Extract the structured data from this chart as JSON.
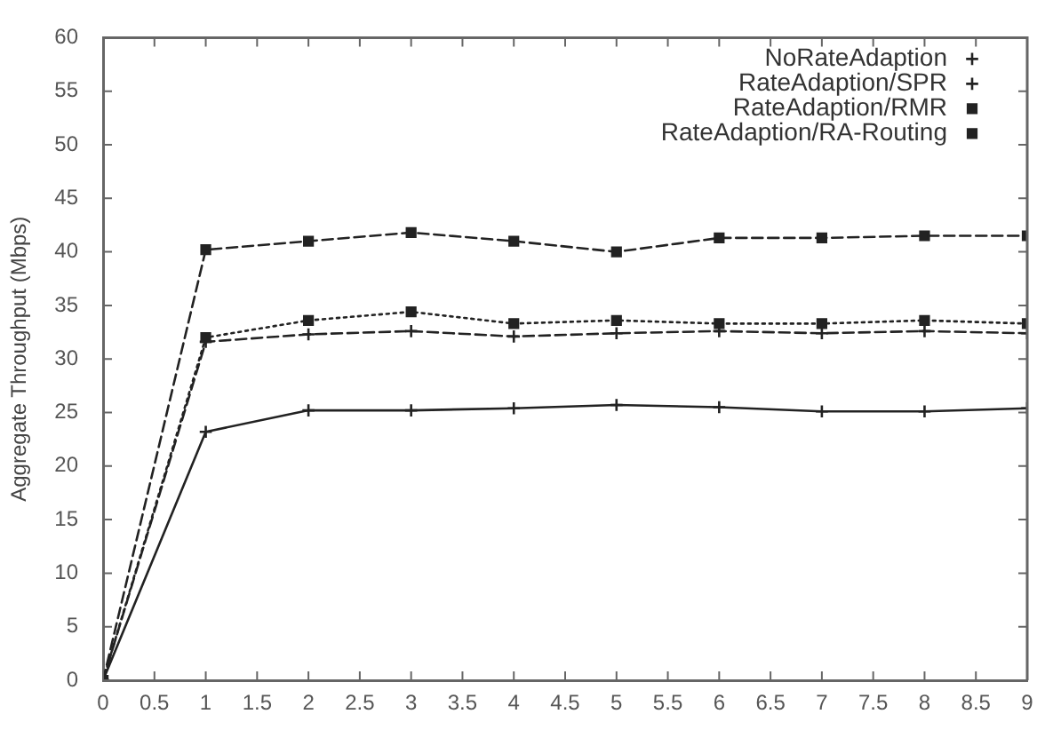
{
  "chart_data": {
    "type": "line",
    "ylabel": "Aggregate Throughput (Mbps)",
    "x": [
      0,
      1,
      2,
      3,
      4,
      5,
      6,
      7,
      8,
      9
    ],
    "series": [
      {
        "name": "NoRateAdaption",
        "color": "#222222",
        "marker": "cross",
        "line_style": "solid",
        "values": [
          0,
          23.2,
          25.2,
          25.2,
          25.4,
          25.7,
          25.5,
          25.1,
          25.1,
          25.4
        ]
      },
      {
        "name": "RateAdaption/SPR",
        "color": "#222222",
        "marker": "cross",
        "line_style": "dashed",
        "values": [
          0,
          31.6,
          32.3,
          32.6,
          32.1,
          32.4,
          32.6,
          32.4,
          32.6,
          32.4
        ]
      },
      {
        "name": "RateAdaption/RMR",
        "color": "#222222",
        "marker": "square",
        "line_style": "dotted",
        "values": [
          0,
          32.0,
          33.6,
          34.4,
          33.3,
          33.6,
          33.3,
          33.3,
          33.6,
          33.3
        ]
      },
      {
        "name": "RateAdaption/RA-Routing",
        "color": "#222222",
        "marker": "square",
        "line_style": "dashed",
        "values": [
          0,
          40.2,
          41.0,
          41.8,
          41.0,
          40.0,
          41.3,
          41.3,
          41.5,
          41.5
        ]
      }
    ],
    "xlim": [
      0,
      9
    ],
    "xticks": [
      0,
      0.5,
      1,
      1.5,
      2,
      2.5,
      3,
      3.5,
      4,
      4.5,
      5,
      5.5,
      6,
      6.5,
      7,
      7.5,
      8,
      8.5,
      9
    ],
    "ylim": [
      0,
      60
    ],
    "yticks": [
      0,
      5,
      10,
      15,
      20,
      25,
      30,
      35,
      40,
      45,
      50,
      55,
      60
    ],
    "grid": false,
    "legend": "top right"
  }
}
